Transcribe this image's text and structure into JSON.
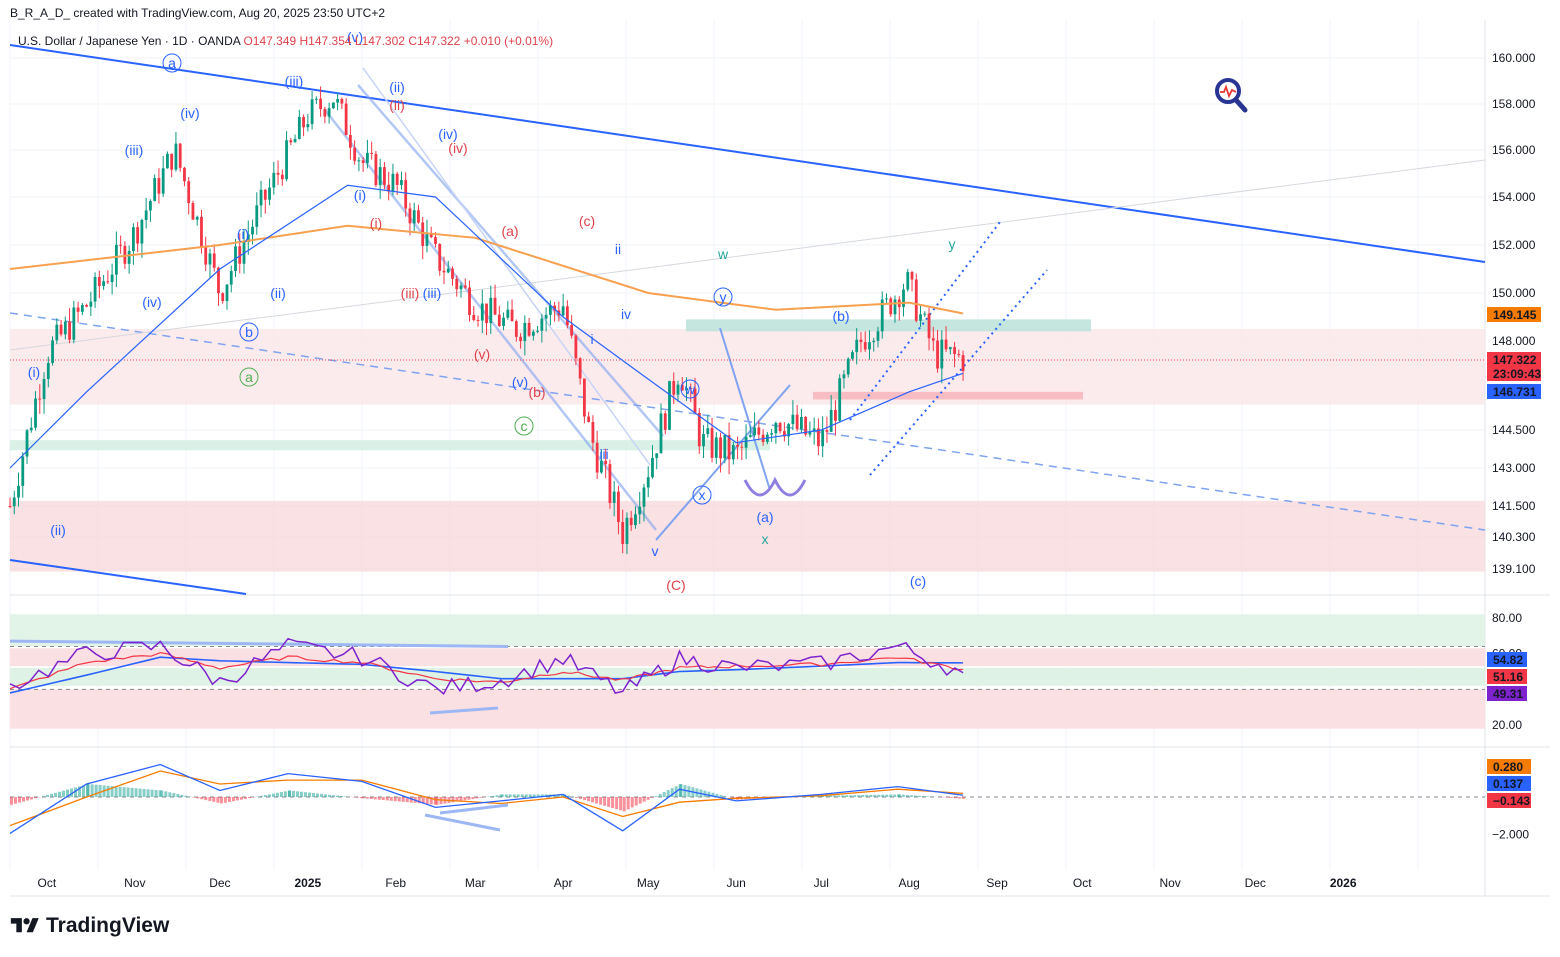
{
  "header": {
    "author_line": "B_R_A_D_ created with TradingView.com, Aug 20, 2025 23:50 UTC+2"
  },
  "legend": {
    "symbol": "U.S. Dollar / Japanese Yen · 1D · OANDA",
    "open": "O147.349",
    "high": "H147.354",
    "low": "L147.302",
    "close": "C147.322",
    "change": "+0.010 (+0.01%)"
  },
  "branding": {
    "logo_text": "TradingView",
    "logo_icon": "tradingview-logo-icon",
    "watermark_icon": "magnifier-chart-icon"
  },
  "colors": {
    "bull": "#089981",
    "bear": "#f23645",
    "trend_blue": "#2962ff",
    "ma_orange": "#f7a050",
    "ma_blue": "#2962ff",
    "rsi": "#7e22ce",
    "resistance_zone": "#f8d7da",
    "support_zone": "#cfeee0"
  },
  "x_axis": {
    "labels": [
      "Oct",
      "Nov",
      "Dec",
      "2025",
      "Feb",
      "Mar",
      "Apr",
      "May",
      "Jun",
      "Jul",
      "Aug",
      "Sep",
      "Oct",
      "Nov",
      "Dec",
      "2026"
    ]
  },
  "price_axis": {
    "ticks": [
      "160.000",
      "158.000",
      "156.000",
      "154.000",
      "152.000",
      "150.000",
      "148.000",
      "144.500",
      "143.000",
      "141.500",
      "140.300",
      "139.100"
    ],
    "labels": [
      {
        "value": "149.145",
        "color": "#f57c00",
        "text_color": "#ffffff"
      },
      {
        "value": "147.322",
        "color": "#f23645",
        "text_color": "#ffffff"
      },
      {
        "value": "23:09:43",
        "color": "#f23645",
        "text_color": "#ffffff"
      },
      {
        "value": "146.731",
        "color": "#2962ff",
        "text_color": "#ffffff"
      }
    ]
  },
  "rsi_axis": {
    "ticks": [
      "80.00",
      "60.00",
      "20.00"
    ],
    "labels": [
      {
        "value": "54.82",
        "color": "#2962ff"
      },
      {
        "value": "51.16",
        "color": "#f23645"
      },
      {
        "value": "49.31",
        "color": "#7e22ce"
      }
    ]
  },
  "macd_axis": {
    "ticks": [
      "−2.000"
    ],
    "labels": [
      {
        "value": "0.280",
        "color": "#f57c00"
      },
      {
        "value": "0.137",
        "color": "#2962ff"
      },
      {
        "value": "−0.143",
        "color": "#f23645"
      }
    ]
  },
  "wave_labels": [
    {
      "text": "a",
      "color": "#2962ff",
      "circle": true
    },
    {
      "text": "(iii)",
      "color": "#2962ff"
    },
    {
      "text": "(v)",
      "color": "#2962ff"
    },
    {
      "text": "(iii)",
      "color": "#2962ff"
    },
    {
      "text": "(iv)",
      "color": "#2962ff"
    },
    {
      "text": "(i)",
      "color": "#2962ff"
    },
    {
      "text": "(ii)",
      "color": "#2962ff"
    },
    {
      "text": "(i)",
      "color": "#2962ff"
    },
    {
      "text": "(ii)",
      "color": "#2962ff"
    },
    {
      "text": "(iv)",
      "color": "#2962ff"
    },
    {
      "text": "b",
      "color": "#2962ff",
      "circle": true
    },
    {
      "text": "a",
      "color": "#4caf50",
      "circle": true
    },
    {
      "text": "(v)",
      "color": "#2962ff"
    },
    {
      "text": "(ii)",
      "color": "#2962ff"
    },
    {
      "text": "(ii)",
      "color": "#e0424b"
    },
    {
      "text": "(iv)",
      "color": "#2962ff"
    },
    {
      "text": "(iv)",
      "color": "#e0424b"
    },
    {
      "text": "(i)",
      "color": "#2962ff"
    },
    {
      "text": "(i)",
      "color": "#e0424b"
    },
    {
      "text": "(a)",
      "color": "#e0424b"
    },
    {
      "text": "(c)",
      "color": "#e0424b"
    },
    {
      "text": "(iii)",
      "color": "#e0424b"
    },
    {
      "text": "(iii)",
      "color": "#2962ff"
    },
    {
      "text": "(v)",
      "color": "#e0424b"
    },
    {
      "text": "(v)",
      "color": "#2962ff"
    },
    {
      "text": "(b)",
      "color": "#e0424b"
    },
    {
      "text": "c",
      "color": "#4caf50",
      "circle": true
    },
    {
      "text": "ii",
      "color": "#2962ff"
    },
    {
      "text": "i",
      "color": "#2962ff"
    },
    {
      "text": "iv",
      "color": "#2962ff"
    },
    {
      "text": "iii",
      "color": "#2962ff"
    },
    {
      "text": "v",
      "color": "#2962ff"
    },
    {
      "text": "(C)",
      "color": "#e0424b"
    },
    {
      "text": "w",
      "color": "#26a69a"
    },
    {
      "text": "y",
      "color": "#2962ff",
      "circle": true
    },
    {
      "text": "w",
      "color": "#2962ff",
      "circle": true
    },
    {
      "text": "x",
      "color": "#2962ff",
      "circle": true
    },
    {
      "text": "(a)",
      "color": "#2962ff"
    },
    {
      "text": "x",
      "color": "#26a69a"
    },
    {
      "text": "(b)",
      "color": "#2962ff"
    },
    {
      "text": "(c)",
      "color": "#2962ff"
    },
    {
      "text": "y",
      "color": "#26a69a"
    }
  ],
  "chart_data": {
    "type": "candlestick",
    "title": "U.S. Dollar / Japanese Yen · 1D · OANDA",
    "x_range": [
      "2024-09-18",
      "2026-02-20"
    ],
    "ylim": [
      138.5,
      161.2
    ],
    "grid": true,
    "price_series": {
      "dates": [
        "2024-09-18",
        "2024-10-01",
        "2024-10-15",
        "2024-11-01",
        "2024-11-15",
        "2024-12-01",
        "2024-12-15",
        "2025-01-01",
        "2025-01-10",
        "2025-01-20",
        "2025-02-01",
        "2025-02-15",
        "2025-03-01",
        "2025-03-15",
        "2025-04-01",
        "2025-04-10",
        "2025-04-22",
        "2025-05-01",
        "2025-05-12",
        "2025-05-20",
        "2025-06-01",
        "2025-06-15",
        "2025-07-01",
        "2025-07-15",
        "2025-07-31",
        "2025-08-10",
        "2025-08-20"
      ],
      "close": [
        141.5,
        147.5,
        149.5,
        152.5,
        156.0,
        150.0,
        153.5,
        157.5,
        158.3,
        155.5,
        154.5,
        151.5,
        149.5,
        148.5,
        149.5,
        144.5,
        140.5,
        143.0,
        147.0,
        144.0,
        143.5,
        145.0,
        144.0,
        148.0,
        150.5,
        147.5,
        147.322
      ]
    },
    "moving_averages": [
      {
        "name": "MA orange",
        "color": "#f7a050",
        "dates": [
          "2024-09-18",
          "2024-12-01",
          "2025-01-15",
          "2025-03-01",
          "2025-05-01",
          "2025-06-15",
          "2025-08-01",
          "2025-08-20"
        ],
        "values": [
          151.0,
          152.0,
          152.8,
          152.3,
          150.0,
          149.3,
          149.6,
          149.145
        ]
      },
      {
        "name": "MA blue",
        "color": "#2962ff",
        "dates": [
          "2024-09-18",
          "2024-10-15",
          "2024-12-01",
          "2025-01-15",
          "2025-02-15",
          "2025-04-01",
          "2025-05-01",
          "2025-06-01",
          "2025-07-01",
          "2025-08-01",
          "2025-08-20"
        ],
        "values": [
          143.0,
          146.0,
          151.0,
          154.5,
          154.0,
          149.0,
          146.5,
          144.0,
          144.5,
          146.0,
          146.731
        ]
      }
    ],
    "last_price": 147.322,
    "rsi": {
      "ylim": [
        10,
        90
      ],
      "dates": [
        "2024-09-18",
        "2024-10-15",
        "2024-11-10",
        "2024-12-01",
        "2024-12-25",
        "2025-01-20",
        "2025-02-15",
        "2025-03-10",
        "2025-04-01",
        "2025-04-22",
        "2025-05-12",
        "2025-06-01",
        "2025-07-01",
        "2025-07-28",
        "2025-08-20"
      ],
      "rsi": [
        42,
        60,
        64,
        44,
        64,
        58,
        40,
        45,
        57,
        38,
        57,
        52,
        54,
        64,
        49.31
      ],
      "signal": [
        40,
        55,
        60,
        52,
        58,
        55,
        46,
        44,
        50,
        45,
        52,
        53,
        54,
        58,
        51.16
      ],
      "ma": [
        38,
        48,
        58,
        56,
        55,
        54,
        50,
        46,
        46,
        46,
        50,
        51,
        53,
        55,
        54.82
      ]
    },
    "macd": {
      "dates": [
        "2024-09-18",
        "2024-10-15",
        "2024-11-10",
        "2024-12-01",
        "2024-12-25",
        "2025-01-20",
        "2025-02-15",
        "2025-03-10",
        "2025-04-01",
        "2025-04-22",
        "2025-05-12",
        "2025-06-01",
        "2025-07-01",
        "2025-07-28",
        "2025-08-20"
      ],
      "macd": [
        -2.8,
        1.0,
        2.5,
        0.5,
        1.8,
        1.2,
        -0.8,
        -0.3,
        0.2,
        -2.6,
        0.6,
        -0.3,
        0.2,
        0.8,
        0.137
      ],
      "signal": [
        -2.2,
        0.0,
        2.0,
        1.0,
        1.3,
        1.3,
        -0.2,
        -0.5,
        0.0,
        -1.5,
        -0.4,
        -0.1,
        0.1,
        0.6,
        0.28
      ],
      "hist": [
        -0.6,
        1.0,
        0.5,
        -0.5,
        0.5,
        -0.1,
        -0.6,
        0.2,
        0.2,
        -1.1,
        1.0,
        -0.2,
        0.1,
        0.2,
        -0.143
      ]
    }
  }
}
